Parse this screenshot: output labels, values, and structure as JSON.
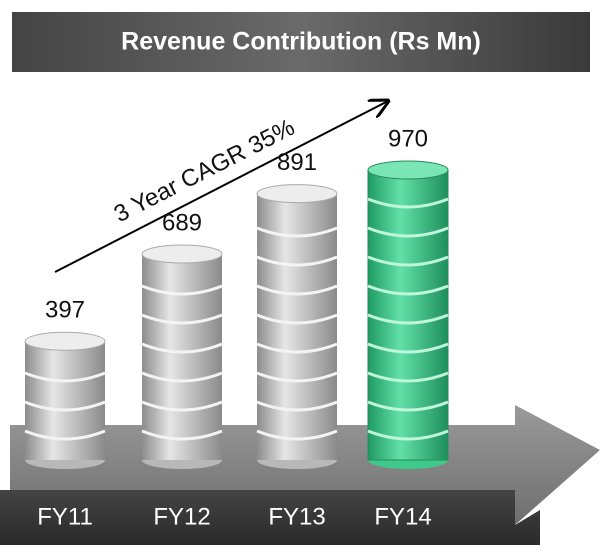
{
  "chart_data": {
    "type": "bar",
    "title": "Revenue Contribution (Rs Mn)",
    "annotation": "3 Year CAGR 35%",
    "categories": [
      "FY11",
      "FY12",
      "FY13",
      "FY14"
    ],
    "values": [
      397,
      689,
      891,
      970
    ],
    "colors": [
      "#b8b8b8",
      "#b8b8b8",
      "#b8b8b8",
      "#3fc98a"
    ]
  }
}
